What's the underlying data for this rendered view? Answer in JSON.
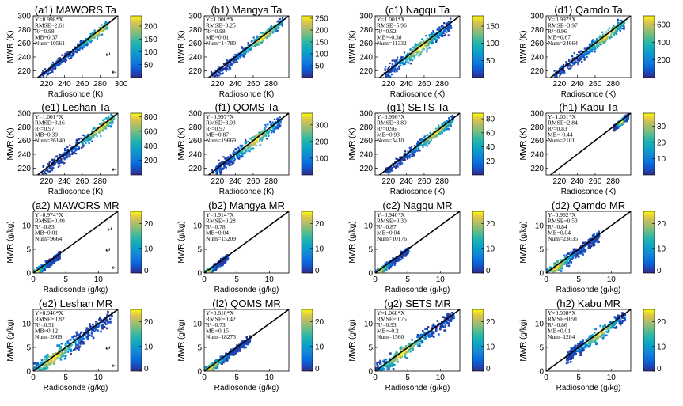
{
  "chart_data": [
    {
      "id": "a1",
      "type": "heatmap",
      "title": "(a1) MAWORS Ta",
      "xlabel": "Radiosonde (K)",
      "ylabel": "MWR (K)",
      "xlim": [
        205,
        300
      ],
      "ylim": [
        210,
        300
      ],
      "xticks": [
        "220",
        "240",
        "260",
        "280"
      ],
      "yticks": [
        "220",
        "240",
        "260",
        "280",
        "300"
      ],
      "extra_x_tick": "300",
      "cbar": {
        "ticks": [
          "50",
          "100",
          "150",
          "200"
        ],
        "max": 240
      },
      "stats": [
        "Y=0.998*X",
        "RMSE=2.61",
        "R²=0.98",
        "MB=0.37",
        "Num=10561"
      ],
      "marks": [
        "↵",
        "↵"
      ],
      "density": {
        "x": [
          212,
          288
        ],
        "spread": 5,
        "peak": 278
      }
    },
    {
      "id": "b1",
      "type": "heatmap",
      "title": "(b1) Mangya Ta",
      "xlabel": "Radiosonde (K)",
      "ylabel": "MWR (K)",
      "xlim": [
        205,
        300
      ],
      "ylim": [
        210,
        300
      ],
      "xticks": [
        "220",
        "240",
        "260",
        "280"
      ],
      "yticks": [
        "220",
        "240",
        "260",
        "280",
        "300"
      ],
      "cbar": {
        "ticks": [
          "50",
          "100",
          "150",
          "200",
          "250"
        ],
        "max": 260
      },
      "stats": [
        "Y=1.000*X",
        "RMSE=3.25",
        "R²=0.98",
        "MB=0.01",
        "Num=14780"
      ],
      "marks": [],
      "density": {
        "x": [
          212,
          292
        ],
        "spread": 6,
        "peak": 270
      }
    },
    {
      "id": "c1",
      "type": "heatmap",
      "title": "(c1) Nagqu Ta",
      "xlabel": "Radiosonde (K)",
      "ylabel": "MWR (K)",
      "xlim": [
        205,
        300
      ],
      "ylim": [
        210,
        300
      ],
      "xticks": [
        "220",
        "240",
        "260",
        "280"
      ],
      "yticks": [
        "220",
        "240",
        "260",
        "280",
        "300"
      ],
      "cbar": {
        "ticks": [
          "50",
          "100",
          "150"
        ],
        "max": 180
      },
      "stats": [
        "Y=1.001*X",
        "RMSE=5.96",
        "R²=0.92",
        "MB=-0.38",
        "Num=11332"
      ],
      "marks": [],
      "density": {
        "x": [
          212,
          290
        ],
        "spread": 8,
        "peak": 255
      }
    },
    {
      "id": "d1",
      "type": "heatmap",
      "title": "(d1) Qamdo Ta",
      "xlabel": "Radiosonde (K)",
      "ylabel": "MWR (K)",
      "xlim": [
        205,
        300
      ],
      "ylim": [
        210,
        300
      ],
      "xticks": [
        "220",
        "240",
        "260",
        "280"
      ],
      "yticks": [
        "220",
        "240",
        "260",
        "280",
        "300"
      ],
      "cbar": {
        "ticks": [
          "200",
          "400",
          "600"
        ],
        "max": 700
      },
      "stats": [
        "Y=0.997*X",
        "RMSE=3.97",
        "R²=0.96",
        "MB=0.67",
        "Num=24664"
      ],
      "marks": [],
      "density": {
        "x": [
          212,
          292
        ],
        "spread": 7,
        "peak": 272
      }
    },
    {
      "id": "e1",
      "type": "heatmap",
      "title": "(e1) Leshan Ta",
      "xlabel": "Radiosonde (K)",
      "ylabel": "MWR (K)",
      "xlim": [
        205,
        300
      ],
      "ylim": [
        210,
        300
      ],
      "xticks": [
        "220",
        "240",
        "260",
        "280"
      ],
      "yticks": [
        "220",
        "240",
        "260",
        "280",
        "300"
      ],
      "cbar": {
        "ticks": [
          "200",
          "400",
          "600",
          "800"
        ],
        "max": 850
      },
      "stats": [
        "Y=1.001*X",
        "RMSE=3.16",
        "R²=0.97",
        "MB=0.39",
        "Num=26140"
      ],
      "marks": [
        "↵"
      ],
      "density": {
        "x": [
          212,
          295
        ],
        "spread": 7,
        "peak": 280
      }
    },
    {
      "id": "f1",
      "type": "heatmap",
      "title": "(f1) QOMS Ta",
      "xlabel": "Radiosonde (K)",
      "ylabel": "MWR (K)",
      "xlim": [
        205,
        300
      ],
      "ylim": [
        210,
        300
      ],
      "xticks": [
        "220",
        "240",
        "260",
        "280"
      ],
      "yticks": [
        "220",
        "240",
        "260",
        "280",
        "300"
      ],
      "cbar": {
        "ticks": [
          "100",
          "200",
          "300"
        ],
        "max": 370
      },
      "stats": [
        "Y=0.997*X",
        "RMSE=3.93",
        "R²=0.97",
        "MB=0.87",
        "Num=19669"
      ],
      "marks": [],
      "density": {
        "x": [
          212,
          290
        ],
        "spread": 8,
        "peak": 262
      }
    },
    {
      "id": "g1",
      "type": "heatmap",
      "title": "(g1) SETS Ta",
      "xlabel": "Radiosonde (K)",
      "ylabel": "MWR (K)",
      "xlim": [
        205,
        300
      ],
      "ylim": [
        210,
        300
      ],
      "xticks": [
        "220",
        "240",
        "260",
        "280"
      ],
      "yticks": [
        "220",
        "240",
        "260",
        "280",
        "300"
      ],
      "cbar": {
        "ticks": [
          "20",
          "40",
          "60",
          "80"
        ],
        "max": 88
      },
      "stats": [
        "Y=0.996*X",
        "RMSE=3.80",
        "R²=0.96",
        "MB=0.93",
        "Num=3410"
      ],
      "marks": [],
      "density": {
        "x": [
          215,
          292
        ],
        "spread": 6,
        "peak": 272
      }
    },
    {
      "id": "h1",
      "type": "heatmap",
      "title": "(h1) Kabu Ta",
      "xlabel": "Radiosonde (K)",
      "ylabel": "MWR (K)",
      "xlim": [
        205,
        300
      ],
      "ylim": [
        210,
        300
      ],
      "xticks": [
        "220",
        "240",
        "260",
        "280"
      ],
      "yticks": [
        "220",
        "240",
        "260",
        "280",
        "300"
      ],
      "cbar": {
        "ticks": [
          "10",
          "20",
          "30"
        ],
        "max": 38
      },
      "stats": [
        "Y=1.001*X",
        "RMSE=2.84",
        "R²=0.83",
        "MB=-0.44",
        "Num=2101"
      ],
      "marks": [],
      "density": {
        "x": [
          280,
          296
        ],
        "spread": 3,
        "peak": 288
      }
    },
    {
      "id": "a2",
      "type": "heatmap",
      "title": "(a2) MAWORS MR",
      "xlabel": "Radiosonde (g/kg)",
      "ylabel": "MWR (g/kg)",
      "xlim": [
        0,
        13
      ],
      "ylim": [
        0,
        13
      ],
      "xticks": [
        "0",
        "5",
        "10"
      ],
      "yticks": [
        "0",
        "5",
        "10"
      ],
      "cbar": {
        "ticks": [
          "0",
          "10",
          "20"
        ],
        "max": 25
      },
      "stats": [
        "Y=0.974*X",
        "RMSE=0.40",
        "R²=0.83",
        "MB=0.01",
        "Num=9664"
      ],
      "marks": [
        "↵",
        "↵",
        "↵"
      ],
      "density": {
        "x": [
          0,
          4
        ],
        "spread": 0.6,
        "peak": 0.4
      }
    },
    {
      "id": "b2",
      "type": "heatmap",
      "title": "(b2) Mangya MR",
      "xlabel": "Radiosonde (g/kg)",
      "ylabel": "MWR (g/kg)",
      "xlim": [
        0,
        13
      ],
      "ylim": [
        0,
        13
      ],
      "xticks": [
        "0",
        "5",
        "10"
      ],
      "yticks": [
        "0",
        "5",
        "10"
      ],
      "cbar": {
        "ticks": [
          "0",
          "10",
          "20"
        ],
        "max": 25
      },
      "stats": [
        "Y=0.914*X",
        "RMSE=0.28",
        "R²=0.78",
        "MB=0.04",
        "Num=15209"
      ],
      "marks": [],
      "density": {
        "x": [
          0,
          3.5
        ],
        "spread": 0.5,
        "peak": 0.4
      }
    },
    {
      "id": "c2",
      "type": "heatmap",
      "title": "(c2) Nagqu MR",
      "xlabel": "Radiosonde (g/kg)",
      "ylabel": "MWR (g/kg)",
      "xlim": [
        0,
        13
      ],
      "ylim": [
        0,
        13
      ],
      "xticks": [
        "0",
        "5",
        "10"
      ],
      "yticks": [
        "0",
        "5",
        "10"
      ],
      "cbar": {
        "ticks": [
          "0",
          "10",
          "20"
        ],
        "max": 25
      },
      "stats": [
        "Y=0.940*X",
        "RMSE=0.30",
        "R²=0.87",
        "MB=0.04",
        "Num=10176"
      ],
      "marks": [],
      "density": {
        "x": [
          0,
          5
        ],
        "spread": 0.6,
        "peak": 0.6
      }
    },
    {
      "id": "d2",
      "type": "heatmap",
      "title": "(d2) Qamdo MR",
      "xlabel": "Radiosonde (g/kg)",
      "ylabel": "MWR (g/kg)",
      "xlim": [
        0,
        13
      ],
      "ylim": [
        0,
        13
      ],
      "xticks": [
        "0",
        "5",
        "10"
      ],
      "yticks": [
        "0",
        "5",
        "10"
      ],
      "cbar": {
        "ticks": [
          "0",
          "10",
          "20"
        ],
        "max": 25
      },
      "stats": [
        "Y=0.962*X",
        "RMSE=0.53",
        "R²=0.84",
        "MB=0.04",
        "Num=23035"
      ],
      "marks": [],
      "density": {
        "x": [
          0,
          8
        ],
        "spread": 1.0,
        "peak": 1.5
      }
    },
    {
      "id": "e2",
      "type": "heatmap",
      "title": "(e2) Leshan MR",
      "xlabel": "Radiosonde (g/kg)",
      "ylabel": "MWR (g/kg)",
      "xlim": [
        0,
        13
      ],
      "ylim": [
        0,
        13
      ],
      "xticks": [
        "0",
        "5",
        "10"
      ],
      "yticks": [
        "0",
        "5",
        "10"
      ],
      "cbar": {
        "ticks": [
          "0",
          "10",
          "20"
        ],
        "max": 25
      },
      "stats": [
        "Y=0.946*X",
        "RMSE=0.82",
        "R²=0.91",
        "MB=0.12",
        "Num=2009"
      ],
      "marks": [
        "↵",
        "↵"
      ],
      "density": {
        "x": [
          0,
          12
        ],
        "spread": 1.4,
        "peak": 3
      }
    },
    {
      "id": "f2",
      "type": "heatmap",
      "title": "(f2) QOMS MR",
      "xlabel": "Radiosonde (g/kg)",
      "ylabel": "MWR (g/kg)",
      "xlim": [
        0,
        13
      ],
      "ylim": [
        0,
        13
      ],
      "xticks": [
        "0",
        "5",
        "10"
      ],
      "yticks": [
        "0",
        "5",
        "10"
      ],
      "cbar": {
        "ticks": [
          "0",
          "10",
          "20"
        ],
        "max": 25
      },
      "stats": [
        "Y=0.810*X",
        "RMSE=0.42",
        "R²=0.73",
        "MB=0.15",
        "Num=18273"
      ],
      "marks": [],
      "density": {
        "x": [
          0,
          7
        ],
        "spread": 0.7,
        "peak": 0.8
      }
    },
    {
      "id": "g2",
      "type": "heatmap",
      "title": "(g2) SETS MR",
      "xlabel": "Radiosonde (g/kg)",
      "ylabel": "MWR (g/kg)",
      "xlim": [
        0,
        13
      ],
      "ylim": [
        0,
        13
      ],
      "xticks": [
        "0",
        "5",
        "10"
      ],
      "yticks": [
        "0",
        "5",
        "10"
      ],
      "cbar": {
        "ticks": [
          "0",
          "10",
          "20"
        ],
        "max": 25
      },
      "stats": [
        "Y=1.068*X",
        "RMSE=0.75",
        "R²=0.93",
        "MB=-0.2",
        "Num=1560"
      ],
      "marks": [],
      "density": {
        "x": [
          0,
          12
        ],
        "spread": 1.2,
        "peak": 4
      }
    },
    {
      "id": "h2",
      "type": "heatmap",
      "title": "(h2) Kabu MR",
      "xlabel": "Radiosonde (g/kg)",
      "ylabel": "MWR (g/kg)",
      "xlim": [
        0,
        13
      ],
      "ylim": [
        0,
        13
      ],
      "xticks": [
        "0",
        "5",
        "10"
      ],
      "yticks": [
        "0",
        "5",
        "10"
      ],
      "cbar": {
        "ticks": [
          "0",
          "10",
          "20"
        ],
        "max": 25
      },
      "stats": [
        "Y=0.998*X",
        "RMSE=0.91",
        "R²=0.86",
        "MB=0.01",
        "Num=1284"
      ],
      "marks": [],
      "density": {
        "x": [
          3,
          12
        ],
        "spread": 1.0,
        "peak": 8
      }
    }
  ]
}
